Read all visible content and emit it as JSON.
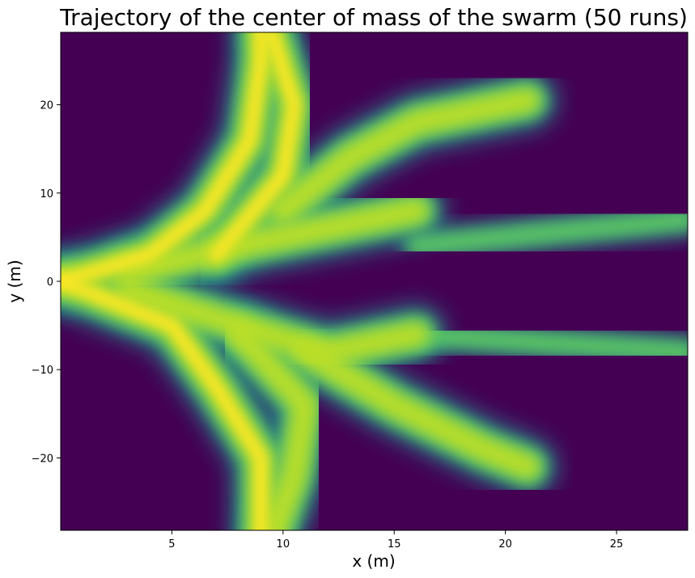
{
  "chart_data": {
    "type": "heatmap",
    "title": "Trajectory of the center of mass of the swarm (50 runs)",
    "xlabel": "x (m)",
    "ylabel": "y (m)",
    "xlim": [
      0,
      28.2
    ],
    "ylim": [
      -28.2,
      28.2
    ],
    "xticks": [
      5,
      10,
      15,
      20,
      25
    ],
    "xtick_labels": [
      "5",
      "10",
      "15",
      "20",
      "25"
    ],
    "yticks": [
      -20,
      -10,
      0,
      10,
      20
    ],
    "ytick_labels": [
      "−20",
      "−10",
      "0",
      "10",
      "20"
    ],
    "colormap": "viridis",
    "background_color": "#440154",
    "peak_color": "#fde725",
    "density_paths": [
      {
        "name": "upper-left-arm",
        "points": [
          [
            0,
            0
          ],
          [
            4,
            3
          ],
          [
            6.5,
            8
          ],
          [
            8.5,
            16
          ],
          [
            9,
            25
          ],
          [
            9,
            29
          ]
        ],
        "weight": 0.95
      },
      {
        "name": "upper-spike",
        "points": [
          [
            7,
            3
          ],
          [
            10,
            12
          ],
          [
            10.5,
            20
          ],
          [
            9.5,
            28
          ]
        ],
        "weight": 0.9
      },
      {
        "name": "upper-right-arm",
        "points": [
          [
            10,
            8
          ],
          [
            13,
            14
          ],
          [
            16,
            18
          ],
          [
            21,
            20.5
          ]
        ],
        "weight": 0.85
      },
      {
        "name": "core-horizontal",
        "points": [
          [
            0,
            0
          ],
          [
            5,
            0
          ],
          [
            10,
            0
          ],
          [
            15,
            0
          ]
        ],
        "weight": 1.0
      },
      {
        "name": "core-upper",
        "points": [
          [
            3,
            1
          ],
          [
            8,
            4
          ],
          [
            12,
            6
          ],
          [
            16,
            8
          ]
        ],
        "weight": 0.8
      },
      {
        "name": "core-lower",
        "points": [
          [
            3,
            -1
          ],
          [
            8,
            -5
          ],
          [
            12,
            -8
          ],
          [
            16,
            -6
          ]
        ],
        "weight": 0.8
      },
      {
        "name": "right-upper-tail",
        "points": [
          [
            16,
            4
          ],
          [
            22,
            5.5
          ],
          [
            28.2,
            7
          ]
        ],
        "weight": 0.5
      },
      {
        "name": "right-lower-tail",
        "points": [
          [
            16,
            -6
          ],
          [
            22,
            -7
          ],
          [
            28.2,
            -8
          ]
        ],
        "weight": 0.6
      },
      {
        "name": "lower-left-arm",
        "points": [
          [
            0,
            0
          ],
          [
            5,
            -5
          ],
          [
            7,
            -12
          ],
          [
            9,
            -20
          ],
          [
            9,
            -29
          ]
        ],
        "weight": 0.95
      },
      {
        "name": "lower-spike",
        "points": [
          [
            8,
            -6
          ],
          [
            11,
            -14
          ],
          [
            10.5,
            -22
          ],
          [
            9.5,
            -29
          ]
        ],
        "weight": 0.85
      },
      {
        "name": "lower-right-arm",
        "points": [
          [
            11,
            -8
          ],
          [
            15,
            -14
          ],
          [
            19,
            -19
          ],
          [
            21,
            -21
          ]
        ],
        "weight": 0.85
      }
    ]
  }
}
